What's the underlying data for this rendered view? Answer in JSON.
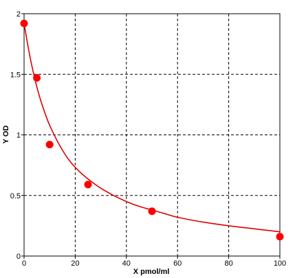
{
  "chart_data": {
    "type": "scatter",
    "title": "",
    "xlabel": "X pmol/ml",
    "ylabel": "Y OD",
    "xlim": [
      0,
      100
    ],
    "ylim": [
      0,
      2
    ],
    "xticks": [
      "0",
      "20",
      "40",
      "60",
      "80",
      "100"
    ],
    "yticks": [
      "0",
      "0.5",
      "1",
      "1.5",
      "2"
    ],
    "xtick_values": [
      0,
      20,
      40,
      60,
      80,
      100
    ],
    "ytick_values": [
      0,
      0.5,
      1,
      1.5,
      2
    ],
    "grid": true,
    "points": {
      "x": [
        0,
        5,
        10,
        25,
        50,
        100
      ],
      "y": [
        1.92,
        1.47,
        0.92,
        0.59,
        0.37,
        0.16
      ]
    },
    "fit_curve": {
      "x": [
        0,
        2,
        4,
        6,
        8,
        10,
        14,
        18,
        22,
        26,
        30,
        35,
        40,
        45,
        50,
        55,
        60,
        70,
        80,
        90,
        100
      ],
      "y": [
        1.92,
        1.68,
        1.48,
        1.32,
        1.19,
        1.08,
        0.91,
        0.78,
        0.69,
        0.62,
        0.56,
        0.5,
        0.45,
        0.41,
        0.38,
        0.35,
        0.32,
        0.28,
        0.25,
        0.225,
        0.2
      ]
    },
    "colors": {
      "points": "#ff0000",
      "curve": "#dd0000",
      "grid": "#000000",
      "axis": "#000000"
    }
  }
}
